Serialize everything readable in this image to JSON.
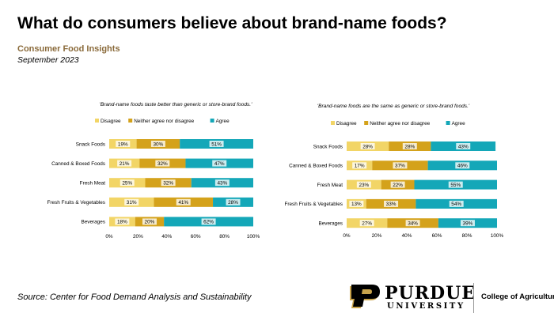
{
  "page": {
    "title": "What do consumers believe about brand-name foods?",
    "subtitle": "Consumer Food Insights",
    "date": "September 2023",
    "source": "Source:  Center for Food Demand Analysis and Sustainability"
  },
  "logo": {
    "wordmark": "PURDUE",
    "university": "UNIVERSITY",
    "registered": "®",
    "college": "College of Agriculture"
  },
  "colors": {
    "disagree": "#f2d566",
    "neither": "#d4a21b",
    "agree": "#14a7b8",
    "brand_gold": "#8a6a3a"
  },
  "chart_data": [
    {
      "type": "bar",
      "orientation": "horizontal",
      "stacked": "percent",
      "title": "'Brand-name foods taste better than generic or store-brand foods.'",
      "categories": [
        "Snack Foods",
        "Canned & Boxed Foods",
        "Fresh Meat",
        "Fresh Fruits & Vegetables",
        "Beverages"
      ],
      "series": [
        {
          "name": "Disagree",
          "values": [
            19,
            21,
            25,
            31,
            18
          ]
        },
        {
          "name": "Neither agree nor disagree",
          "values": [
            30,
            32,
            32,
            41,
            20
          ]
        },
        {
          "name": "Agree",
          "values": [
            51,
            47,
            43,
            28,
            62
          ]
        }
      ],
      "xticks": [
        "0%",
        "20%",
        "40%",
        "60%",
        "80%",
        "100%"
      ],
      "xlim": [
        0,
        100
      ],
      "legend": "top"
    },
    {
      "type": "bar",
      "orientation": "horizontal",
      "stacked": "percent",
      "title": "'Brand-name foods are the same as generic or store-brand foods.'",
      "categories": [
        "Snack Foods",
        "Canned & Boxed Foods",
        "Fresh Meat",
        "Fresh Fruits & Vegetables",
        "Beverages"
      ],
      "series": [
        {
          "name": "Disagree",
          "values": [
            28,
            17,
            23,
            13,
            27
          ]
        },
        {
          "name": "Neither agree nor disagree",
          "values": [
            28,
            37,
            22,
            33,
            34
          ]
        },
        {
          "name": "Agree",
          "values": [
            43,
            46,
            55,
            54,
            39
          ]
        }
      ],
      "xticks": [
        "0%",
        "20%",
        "40%",
        "60%",
        "80%",
        "100%"
      ],
      "xlim": [
        0,
        100
      ],
      "legend": "top"
    }
  ]
}
